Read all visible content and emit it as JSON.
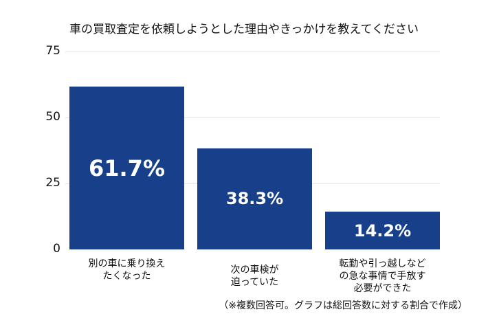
{
  "chart_data": {
    "type": "bar",
    "title": "車の買取査定を依頼しようとした理由やきっかけを教えてください",
    "categories": [
      "別の車に乗り換え\nたくなった",
      "次の車検が\n迫っていた",
      "転勤や引っ越しなど\nの急な事情で手放す\n必要ができた"
    ],
    "values": [
      61.7,
      38.3,
      14.2
    ],
    "data_labels": [
      "61.7%",
      "38.3%",
      "14.2%"
    ],
    "yticks": [
      "0",
      "25",
      "50",
      "75"
    ],
    "ylim": [
      0,
      75
    ],
    "grid": true,
    "bar_color": "#173f8a",
    "note": "（※複数回答可。グラフは総回答数に対する割合で作成）"
  }
}
